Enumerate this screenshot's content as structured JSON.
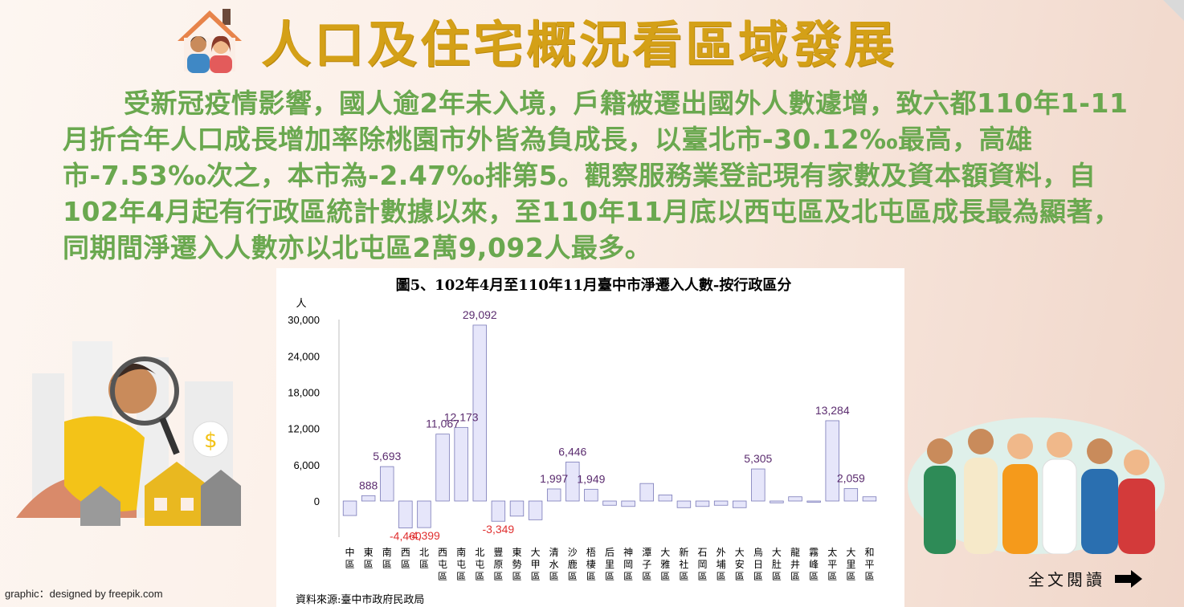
{
  "title": "人口及住宅概況看區域發展",
  "summary": "受新冠疫情影響，國人逾2年未入境，戶籍被遷出國外人數遽增，致六都110年1-11月折合年人口成長增加率除桃園市外皆為負成長，以臺北市-30.12‰最高，高雄市-7.53‰次之，本市為-2.47‰排第5。觀察服務業登記現有家數及資本額資料，自102年4月起有行政區統計數據以來，至110年11月底以西屯區及北屯區成長最為顯著，同期間淨遷入人數亦以北屯區2萬9,092人最多。",
  "credit": "graphic：designed by freepik.com",
  "read_more": "全文閱讀",
  "icons": {
    "title_icon": "family-house-icon",
    "arrow": "arrow-right-icon",
    "left_illustration": "magnifier-houses-illustration",
    "right_illustration": "happy-people-illustration",
    "corner": "corner-triangle-icon"
  },
  "colors": {
    "title": "#d4a017",
    "summary": "#6aa84f",
    "bar_fill": "#e6e6fa",
    "bar_stroke": "#7a7ab8",
    "positive_label": "#5b2c6f",
    "negative_label": "#e03030"
  },
  "chart_data": {
    "type": "bar",
    "title": "圖5、102年4月至110年11月臺中市淨遷入人數-按行政區分",
    "ylabel": "人",
    "ylim": [
      -7000,
      32000
    ],
    "yticks": [
      "30,000",
      "24,000",
      "18,000",
      "12,000",
      "6,000",
      "0"
    ],
    "source": "資料來源:臺中市政府民政局",
    "categories": [
      "中區",
      "東區",
      "南區",
      "西區",
      "北區",
      "西屯區",
      "南屯區",
      "北屯區",
      "豐原區",
      "東勢區",
      "大甲區",
      "清水區",
      "沙鹿區",
      "梧棲區",
      "后里區",
      "神岡區",
      "潭子區",
      "大雅區",
      "新社區",
      "石岡區",
      "外埔區",
      "大安區",
      "烏日區",
      "大肚區",
      "龍井區",
      "霧峰區",
      "太平區",
      "大里區",
      "和平區"
    ],
    "values": [
      -2400,
      888,
      5693,
      -4460,
      -4399,
      11067,
      12173,
      29092,
      -3349,
      -2500,
      -3100,
      1997,
      6446,
      1949,
      -700,
      -900,
      2900,
      1000,
      -1100,
      -900,
      -700,
      -1100,
      5305,
      -300,
      700,
      -200,
      13284,
      2059,
      700
    ],
    "data_labels": [
      "",
      "888",
      "5,693",
      "-4,460",
      "-4,399",
      "11,067",
      "12,173",
      "29,092",
      "-3,349",
      "",
      "",
      "1,997",
      "6,446",
      "1,949",
      "",
      "",
      "",
      "",
      "",
      "",
      "",
      "",
      "5,305",
      "",
      "",
      "",
      "13,284",
      "2,059",
      ""
    ]
  }
}
